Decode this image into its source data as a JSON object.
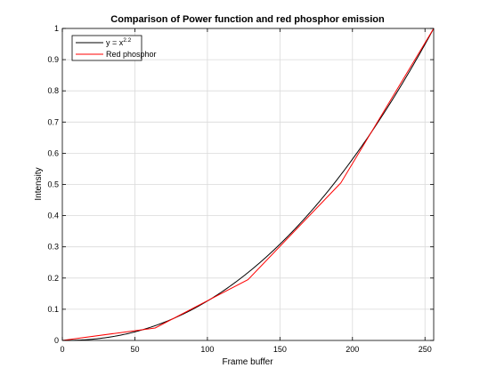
{
  "chart_data": {
    "type": "line",
    "title": "Comparison of Power function and red phosphor emission",
    "xlabel": "Frame buffer",
    "ylabel": "Intensity",
    "xlim": [
      0,
      256
    ],
    "ylim": [
      0,
      1
    ],
    "xticks": [
      0,
      50,
      100,
      150,
      200,
      250
    ],
    "xtick_labels": [
      "0",
      "50",
      "100",
      "150",
      "200",
      "250"
    ],
    "yticks": [
      0,
      0.1,
      0.2,
      0.3,
      0.4,
      0.5,
      0.6,
      0.7,
      0.8,
      0.9,
      1
    ],
    "ytick_labels": [
      "0",
      "0.1",
      "0.2",
      "0.3",
      "0.4",
      "0.5",
      "0.6",
      "0.7",
      "0.8",
      "0.9",
      "1"
    ],
    "grid": true,
    "legend_position": "top-left",
    "series": [
      {
        "name": "y = x^2.2",
        "legend_base": "y = x",
        "legend_exponent": "2.2",
        "color": "#000000",
        "function": "power",
        "exponent": 2.2
      },
      {
        "name": "Red phosphor",
        "legend_label": "Red phosphor",
        "color": "#ff0000",
        "x": [
          0,
          64,
          128,
          192,
          256
        ],
        "y": [
          0,
          0.04,
          0.195,
          0.505,
          1.0
        ]
      }
    ]
  }
}
